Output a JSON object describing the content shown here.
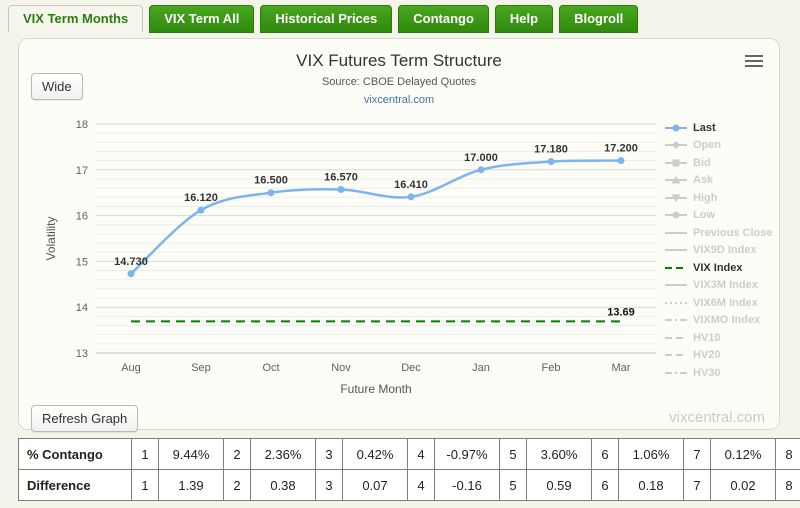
{
  "tabs": [
    {
      "label": "VIX Term Months",
      "active": true
    },
    {
      "label": "VIX Term All",
      "active": false
    },
    {
      "label": "Historical Prices",
      "active": false
    },
    {
      "label": "Contango",
      "active": false
    },
    {
      "label": "Help",
      "active": false
    },
    {
      "label": "Blogroll",
      "active": false
    }
  ],
  "panel": {
    "wide_button": "Wide",
    "refresh_button": "Refresh Graph",
    "watermark": "vixcentral.com"
  },
  "chart_data": {
    "type": "line",
    "title": "VIX Futures Term Structure",
    "subtitle": "Source: CBOE Delayed Quotes",
    "link": "vixcentral.com",
    "xlabel": "Future Month",
    "ylabel": "Volatility",
    "ylim": [
      13,
      18
    ],
    "y_ticks": [
      13,
      14,
      15,
      16,
      17,
      18
    ],
    "y_minor_step": 0.2,
    "grid": true,
    "legend_position": "right",
    "categories": [
      "Aug",
      "Sep",
      "Oct",
      "Nov",
      "Dec",
      "Jan",
      "Feb",
      "Mar"
    ],
    "series": [
      {
        "name": "Last",
        "type": "spline",
        "color": "#7cb5ec",
        "values": [
          14.73,
          16.12,
          16.5,
          16.57,
          16.41,
          17.0,
          17.18,
          17.2
        ],
        "labels": [
          "14.730",
          "16.120",
          "16.500",
          "16.570",
          "16.410",
          "17.000",
          "17.180",
          "17.200"
        ]
      },
      {
        "name": "VIX Index",
        "type": "dashed-hline",
        "color": "#008000",
        "value": 13.69,
        "label": "13.69"
      }
    ],
    "legend": [
      {
        "label": "Last",
        "color": "#7cb5ec",
        "style": "line",
        "symbol": "circle",
        "active": true
      },
      {
        "label": "Open",
        "style": "line",
        "symbol": "diamond",
        "active": false
      },
      {
        "label": "Bid",
        "style": "line",
        "symbol": "square",
        "active": false
      },
      {
        "label": "Ask",
        "style": "line",
        "symbol": "triangle",
        "active": false
      },
      {
        "label": "High",
        "style": "line",
        "symbol": "triangle-down",
        "active": false
      },
      {
        "label": "Low",
        "style": "line",
        "symbol": "circle",
        "active": false
      },
      {
        "label": "Previous Close",
        "style": "line",
        "symbol": "",
        "active": false
      },
      {
        "label": "VIX9D Index",
        "style": "line",
        "symbol": "",
        "active": false
      },
      {
        "label": "VIX Index",
        "color": "#008000",
        "style": "dash",
        "symbol": "",
        "active": true
      },
      {
        "label": "VIX3M Index",
        "style": "line",
        "symbol": "",
        "active": false
      },
      {
        "label": "VIX6M Index",
        "style": "dot",
        "symbol": "",
        "active": false
      },
      {
        "label": "VIXMO Index",
        "style": "dashdot",
        "symbol": "",
        "active": false
      },
      {
        "label": "HV10",
        "style": "dash",
        "symbol": "",
        "active": false
      },
      {
        "label": "HV20",
        "style": "dash",
        "symbol": "",
        "active": false
      },
      {
        "label": "HV30",
        "style": "dashdot",
        "symbol": "",
        "active": false
      }
    ],
    "inactive_color": "#cccccc"
  },
  "table": {
    "rows": [
      {
        "label": "% Contango",
        "cells": [
          "1",
          "9.44%",
          "2",
          "2.36%",
          "3",
          "0.42%",
          "4",
          "-0.97%",
          "5",
          "3.60%",
          "6",
          "1.06%",
          "7",
          "0.12%",
          "8"
        ]
      },
      {
        "label": "Difference",
        "cells": [
          "1",
          "1.39",
          "2",
          "0.38",
          "3",
          "0.07",
          "4",
          "-0.16",
          "5",
          "0.59",
          "6",
          "0.18",
          "7",
          "0.02",
          "8"
        ]
      }
    ]
  }
}
